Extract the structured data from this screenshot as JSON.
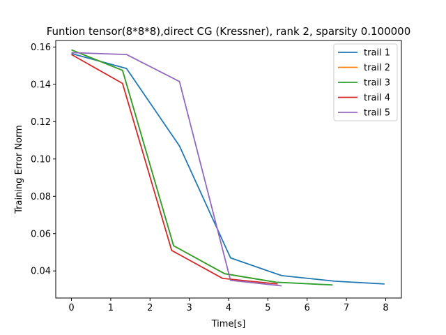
{
  "chart_data": {
    "type": "line",
    "title": "Funtion tensor(8*8*8),direct CG (Kressner), rank 2, sparsity 0.100000",
    "xlabel": "Time[s]",
    "ylabel": "Training Error Norm",
    "xlim": [
      -0.4,
      8.4
    ],
    "ylim": [
      0.0255,
      0.1635
    ],
    "xticks": [
      0,
      1,
      2,
      3,
      4,
      5,
      6,
      7,
      8
    ],
    "yticks": [
      0.04,
      0.06,
      0.08,
      0.1,
      0.12,
      0.14,
      0.16
    ],
    "ytick_labels": [
      "0.04",
      "0.06",
      "0.08",
      "0.10",
      "0.12",
      "0.14",
      "0.16"
    ],
    "grid": false,
    "legend_position": "top-right",
    "series": [
      {
        "name": "trail 1",
        "color": "#1f77b4",
        "x": [
          0.0,
          1.4,
          2.75,
          4.05,
          5.35,
          6.7,
          7.97
        ],
        "y": [
          0.1565,
          0.1485,
          0.107,
          0.047,
          0.0375,
          0.0345,
          0.033
        ]
      },
      {
        "name": "trail 2",
        "color": "#ff7f0e",
        "x": [
          0.0,
          1.3,
          2.6,
          3.9,
          5.2
        ],
        "y": [
          0.1585,
          0.1475,
          0.0535,
          0.0385,
          0.034
        ]
      },
      {
        "name": "trail 3",
        "color": "#2ca02c",
        "x": [
          0.0,
          1.3,
          2.6,
          3.9,
          5.2,
          6.65
        ],
        "y": [
          0.1585,
          0.1475,
          0.0535,
          0.0385,
          0.034,
          0.0325
        ]
      },
      {
        "name": "trail 4",
        "color": "#d62728",
        "x": [
          0.0,
          1.3,
          2.55,
          3.85,
          5.25
        ],
        "y": [
          0.156,
          0.1405,
          0.051,
          0.036,
          0.033
        ]
      },
      {
        "name": "trail 5",
        "color": "#9467bd",
        "x": [
          0.0,
          1.4,
          2.75,
          4.05,
          5.35
        ],
        "y": [
          0.157,
          0.156,
          0.1415,
          0.035,
          0.032
        ]
      }
    ]
  }
}
